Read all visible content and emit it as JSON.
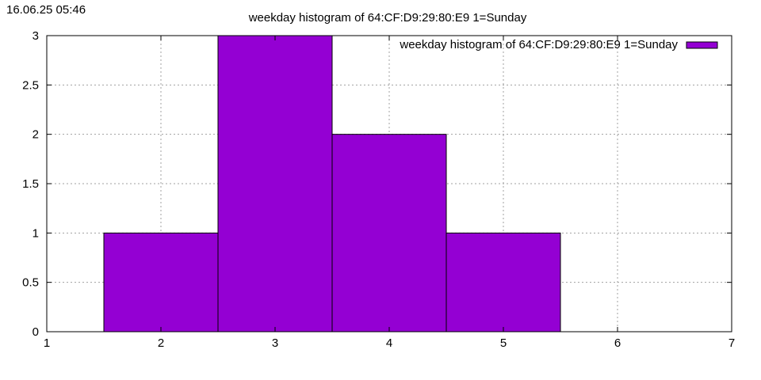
{
  "timestamp": "16.06.25 05:46",
  "chart_data": {
    "type": "bar",
    "title": "weekday histogram of 64:CF:D9:29:80:E9 1=Sunday",
    "xlabel": "",
    "ylabel": "",
    "xlim": [
      1,
      7
    ],
    "ylim": [
      0,
      3
    ],
    "x_ticks": [
      "1",
      "2",
      "3",
      "4",
      "5",
      "6",
      "7"
    ],
    "y_ticks": [
      "0",
      "0.5",
      "1",
      "1.5",
      "2",
      "2.5",
      "3"
    ],
    "x_tick_values": [
      1,
      2,
      3,
      4,
      5,
      6,
      7
    ],
    "y_tick_values": [
      0,
      0.5,
      1,
      1.5,
      2,
      2.5,
      3
    ],
    "bar_width": 1,
    "categories": [
      2,
      3,
      4,
      5
    ],
    "series": [
      {
        "name": "weekday histogram of 64:CF:D9:29:80:E9 1=Sunday",
        "values": [
          1,
          3,
          2,
          1
        ],
        "color": "#9400d3"
      }
    ],
    "grid": true,
    "legend_position": "top-right"
  }
}
